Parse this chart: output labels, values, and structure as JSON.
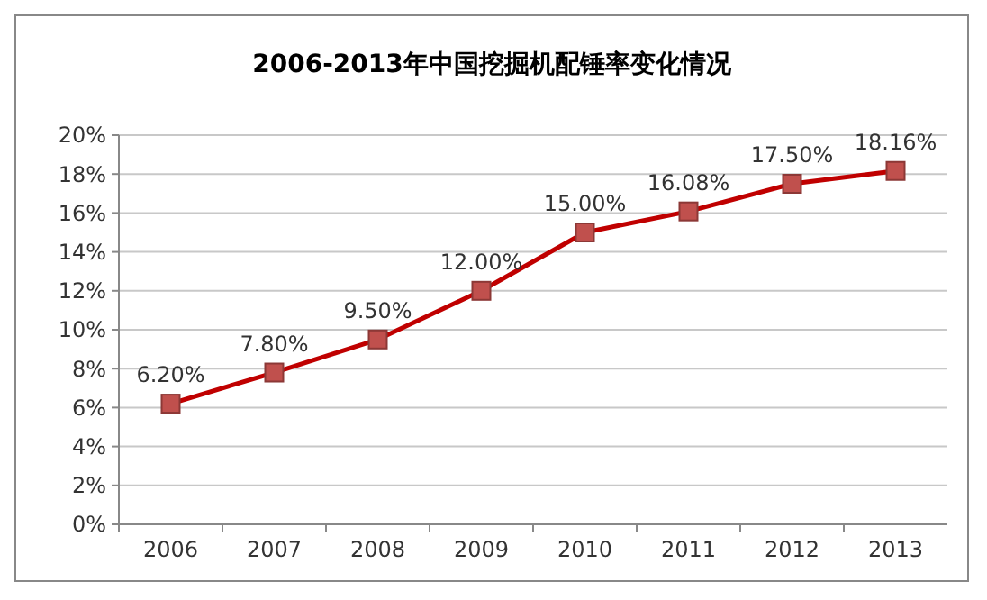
{
  "chart_data": {
    "type": "line",
    "title": "2006-2013年中国挖掘机配锤率变化情况",
    "categories": [
      "2006",
      "2007",
      "2008",
      "2009",
      "2010",
      "2011",
      "2012",
      "2013"
    ],
    "series": [
      {
        "color": "#c0504d",
        "values": [
          6.2,
          7.8,
          9.5,
          12,
          15,
          16.08,
          17.5,
          18.16
        ],
        "value_labels": [
          "6.20%",
          "7.80%",
          "9.50%",
          "12.00%",
          "15.00%",
          "16.08%",
          "17.50%",
          "18.16%"
        ]
      }
    ],
    "ylim": [
      0,
      20
    ],
    "yticks": [
      {
        "value": 0,
        "label": "0%"
      },
      {
        "value": 2,
        "label": "2%"
      },
      {
        "value": 4,
        "label": "4%"
      },
      {
        "value": 6,
        "label": "6%"
      },
      {
        "value": 8,
        "label": "8%"
      },
      {
        "value": 10,
        "label": "10%"
      },
      {
        "value": 12,
        "label": "12%"
      },
      {
        "value": 14,
        "label": "14%"
      },
      {
        "value": 16,
        "label": "16%"
      },
      {
        "value": 18,
        "label": "18%"
      },
      {
        "value": 20,
        "label": "20%"
      }
    ],
    "grid": "y",
    "marker": "square",
    "line_style": "solid"
  }
}
